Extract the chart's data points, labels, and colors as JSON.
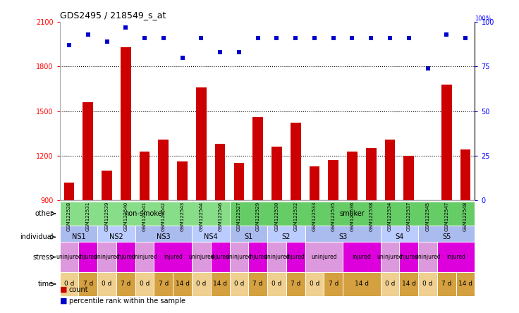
{
  "title": "GDS2495 / 218549_s_at",
  "samples": [
    "GSM122528",
    "GSM122531",
    "GSM122539",
    "GSM122540",
    "GSM122541",
    "GSM122542",
    "GSM122543",
    "GSM122544",
    "GSM122546",
    "GSM122527",
    "GSM122529",
    "GSM122530",
    "GSM122532",
    "GSM122533",
    "GSM122535",
    "GSM122536",
    "GSM122538",
    "GSM122534",
    "GSM122537",
    "GSM122545",
    "GSM122547",
    "GSM122548"
  ],
  "counts": [
    1020,
    1560,
    1100,
    1930,
    1230,
    1310,
    1160,
    1660,
    1280,
    1150,
    1460,
    1260,
    1420,
    1130,
    1170,
    1230,
    1250,
    1310,
    1200,
    870,
    1680,
    1240
  ],
  "percentile": [
    87,
    93,
    89,
    97,
    91,
    91,
    80,
    91,
    83,
    83,
    91,
    91,
    91,
    91,
    91,
    91,
    91,
    91,
    91,
    74,
    93,
    91
  ],
  "ylim_left": [
    900,
    2100
  ],
  "ylim_right": [
    0,
    100
  ],
  "yticks_left": [
    900,
    1200,
    1500,
    1800,
    2100
  ],
  "yticks_right": [
    0,
    25,
    50,
    75,
    100
  ],
  "bar_color": "#cc0000",
  "dot_color": "#0000cc",
  "row_other": {
    "label": "other",
    "segments": [
      {
        "text": "non-smoker",
        "start": 0,
        "end": 9,
        "color": "#88dd88"
      },
      {
        "text": "smoker",
        "start": 9,
        "end": 22,
        "color": "#66cc66"
      }
    ]
  },
  "row_individual": {
    "label": "individual",
    "segments": [
      {
        "text": "NS1",
        "start": 0,
        "end": 2,
        "color": "#aabbee"
      },
      {
        "text": "NS2",
        "start": 2,
        "end": 4,
        "color": "#bbccff"
      },
      {
        "text": "NS3",
        "start": 4,
        "end": 7,
        "color": "#aabbee"
      },
      {
        "text": "NS4",
        "start": 7,
        "end": 9,
        "color": "#bbccff"
      },
      {
        "text": "S1",
        "start": 9,
        "end": 11,
        "color": "#aabbee"
      },
      {
        "text": "S2",
        "start": 11,
        "end": 13,
        "color": "#bbccff"
      },
      {
        "text": "S3",
        "start": 13,
        "end": 17,
        "color": "#aabbee"
      },
      {
        "text": "S4",
        "start": 17,
        "end": 19,
        "color": "#bbccff"
      },
      {
        "text": "S5",
        "start": 19,
        "end": 22,
        "color": "#aabbee"
      }
    ]
  },
  "row_stress": {
    "label": "stress",
    "segments": [
      {
        "text": "uninjured",
        "start": 0,
        "end": 1,
        "color": "#dd99dd"
      },
      {
        "text": "injured",
        "start": 1,
        "end": 2,
        "color": "#dd00dd"
      },
      {
        "text": "uninjured",
        "start": 2,
        "end": 3,
        "color": "#dd99dd"
      },
      {
        "text": "injured",
        "start": 3,
        "end": 4,
        "color": "#dd00dd"
      },
      {
        "text": "uninjured",
        "start": 4,
        "end": 5,
        "color": "#dd99dd"
      },
      {
        "text": "injured",
        "start": 5,
        "end": 7,
        "color": "#dd00dd"
      },
      {
        "text": "uninjured",
        "start": 7,
        "end": 8,
        "color": "#dd99dd"
      },
      {
        "text": "injured",
        "start": 8,
        "end": 9,
        "color": "#dd00dd"
      },
      {
        "text": "uninjured",
        "start": 9,
        "end": 10,
        "color": "#dd99dd"
      },
      {
        "text": "injured",
        "start": 10,
        "end": 11,
        "color": "#dd00dd"
      },
      {
        "text": "uninjured",
        "start": 11,
        "end": 12,
        "color": "#dd99dd"
      },
      {
        "text": "injured",
        "start": 12,
        "end": 13,
        "color": "#dd00dd"
      },
      {
        "text": "uninjured",
        "start": 13,
        "end": 15,
        "color": "#dd99dd"
      },
      {
        "text": "injured",
        "start": 15,
        "end": 17,
        "color": "#dd00dd"
      },
      {
        "text": "uninjured",
        "start": 17,
        "end": 18,
        "color": "#dd99dd"
      },
      {
        "text": "injured",
        "start": 18,
        "end": 19,
        "color": "#dd00dd"
      },
      {
        "text": "uninjured",
        "start": 19,
        "end": 20,
        "color": "#dd99dd"
      },
      {
        "text": "injured",
        "start": 20,
        "end": 22,
        "color": "#dd00dd"
      }
    ]
  },
  "row_time": {
    "label": "time",
    "segments": [
      {
        "text": "0 d",
        "start": 0,
        "end": 1,
        "color": "#f0d090"
      },
      {
        "text": "7 d",
        "start": 1,
        "end": 2,
        "color": "#d4a040"
      },
      {
        "text": "0 d",
        "start": 2,
        "end": 3,
        "color": "#f0d090"
      },
      {
        "text": "7 d",
        "start": 3,
        "end": 4,
        "color": "#d4a040"
      },
      {
        "text": "0 d",
        "start": 4,
        "end": 5,
        "color": "#f0d090"
      },
      {
        "text": "7 d",
        "start": 5,
        "end": 6,
        "color": "#d4a040"
      },
      {
        "text": "14 d",
        "start": 6,
        "end": 7,
        "color": "#d4a040"
      },
      {
        "text": "0 d",
        "start": 7,
        "end": 8,
        "color": "#f0d090"
      },
      {
        "text": "14 d",
        "start": 8,
        "end": 9,
        "color": "#d4a040"
      },
      {
        "text": "0 d",
        "start": 9,
        "end": 10,
        "color": "#f0d090"
      },
      {
        "text": "7 d",
        "start": 10,
        "end": 11,
        "color": "#d4a040"
      },
      {
        "text": "0 d",
        "start": 11,
        "end": 12,
        "color": "#f0d090"
      },
      {
        "text": "7 d",
        "start": 12,
        "end": 13,
        "color": "#d4a040"
      },
      {
        "text": "0 d",
        "start": 13,
        "end": 14,
        "color": "#f0d090"
      },
      {
        "text": "7 d",
        "start": 14,
        "end": 15,
        "color": "#d4a040"
      },
      {
        "text": "14 d",
        "start": 15,
        "end": 17,
        "color": "#d4a040"
      },
      {
        "text": "0 d",
        "start": 17,
        "end": 18,
        "color": "#f0d090"
      },
      {
        "text": "14 d",
        "start": 18,
        "end": 19,
        "color": "#d4a040"
      },
      {
        "text": "0 d",
        "start": 19,
        "end": 20,
        "color": "#f0d090"
      },
      {
        "text": "7 d",
        "start": 20,
        "end": 21,
        "color": "#d4a040"
      },
      {
        "text": "14 d",
        "start": 21,
        "end": 22,
        "color": "#d4a040"
      }
    ]
  },
  "bg_color": "#ffffff",
  "grid_color": "#888888",
  "xticklabel_bg": "#cccccc"
}
